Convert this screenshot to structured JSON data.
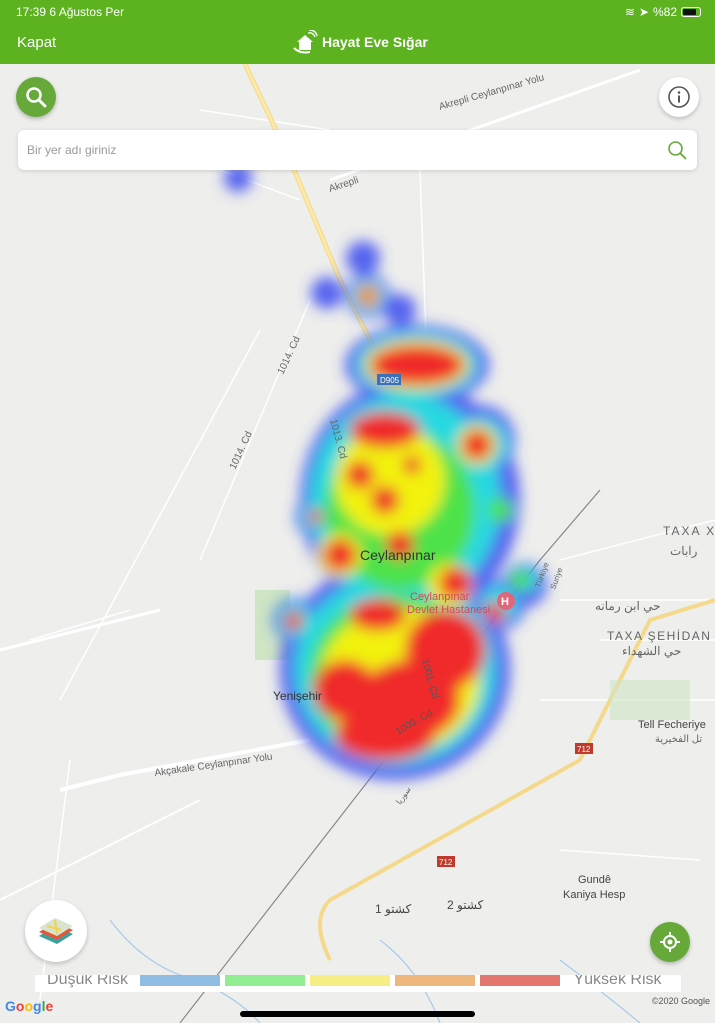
{
  "status_bar": {
    "time_date": "17:39  6 Ağustos Per",
    "battery": "%82",
    "battery_level": 0.82
  },
  "header": {
    "close_label": "Kapat",
    "title": "Hayat Eve Sığar"
  },
  "search": {
    "placeholder": "Bir yer adı giriniz",
    "value": ""
  },
  "map": {
    "labels": {
      "city": "Ceylanpınar",
      "hospital": "Ceylanpınar Devlet Hastanesi",
      "hospital_line2": "Devlet Hastanesi",
      "hospital_line1": "Ceylanpınar",
      "district": "Yenişehir",
      "road_1014": "1014. Cd",
      "road_1014b": "1014. Cd",
      "road_1013": "1013. Cd",
      "road_1001": "1001. Cd",
      "road_1003": "1003. Cd",
      "d905": "D905",
      "akcakale": "Akçakale Ceylanpınar Yolu",
      "akrepli_road": "Akrepli Ceylanpınar Yolu",
      "akrepli": "Akrepli",
      "taxa_x": "TAXA X",
      "taxa_x_ar": "ﺭﺍﺑﺎﺕ",
      "ibn_ramana": "حي ابن رمانه",
      "taxa_sehidan": "TAXA ŞEHİDAN",
      "shuhada": "حي الشهداء",
      "tell": "Tell Fecheriye",
      "tell_ar": "تل الفخيرية",
      "r712a": "712",
      "r712b": "712",
      "gunde": "Gundê",
      "kaniya": "Kaniya Hesp",
      "kashto1": "كشتو 1",
      "kashto2": "كشتو 2",
      "turkiye": "Türkiye",
      "suriye": "Suriye",
      "suriye_ar": "سوريا"
    },
    "heatmap_colors": {
      "low": "#3b4cf0",
      "mid": "#26d9e0",
      "green": "#4ee24a",
      "yellow": "#f2f20c",
      "high": "#f02a2a"
    }
  },
  "legend": {
    "low_label": "Düşük Risk",
    "high_label": "Yüksek Risk",
    "colors": [
      "#8fbde3",
      "#92ec92",
      "#f7ef86",
      "#eeb77c",
      "#e3766f"
    ]
  },
  "attribution": {
    "google": "Google",
    "copyright": "©2020 Google"
  },
  "icons": {
    "search": "search-icon",
    "info": "info-icon",
    "layers": "map-layers-icon",
    "location": "my-location-icon",
    "logo": "house-hands-logo"
  }
}
